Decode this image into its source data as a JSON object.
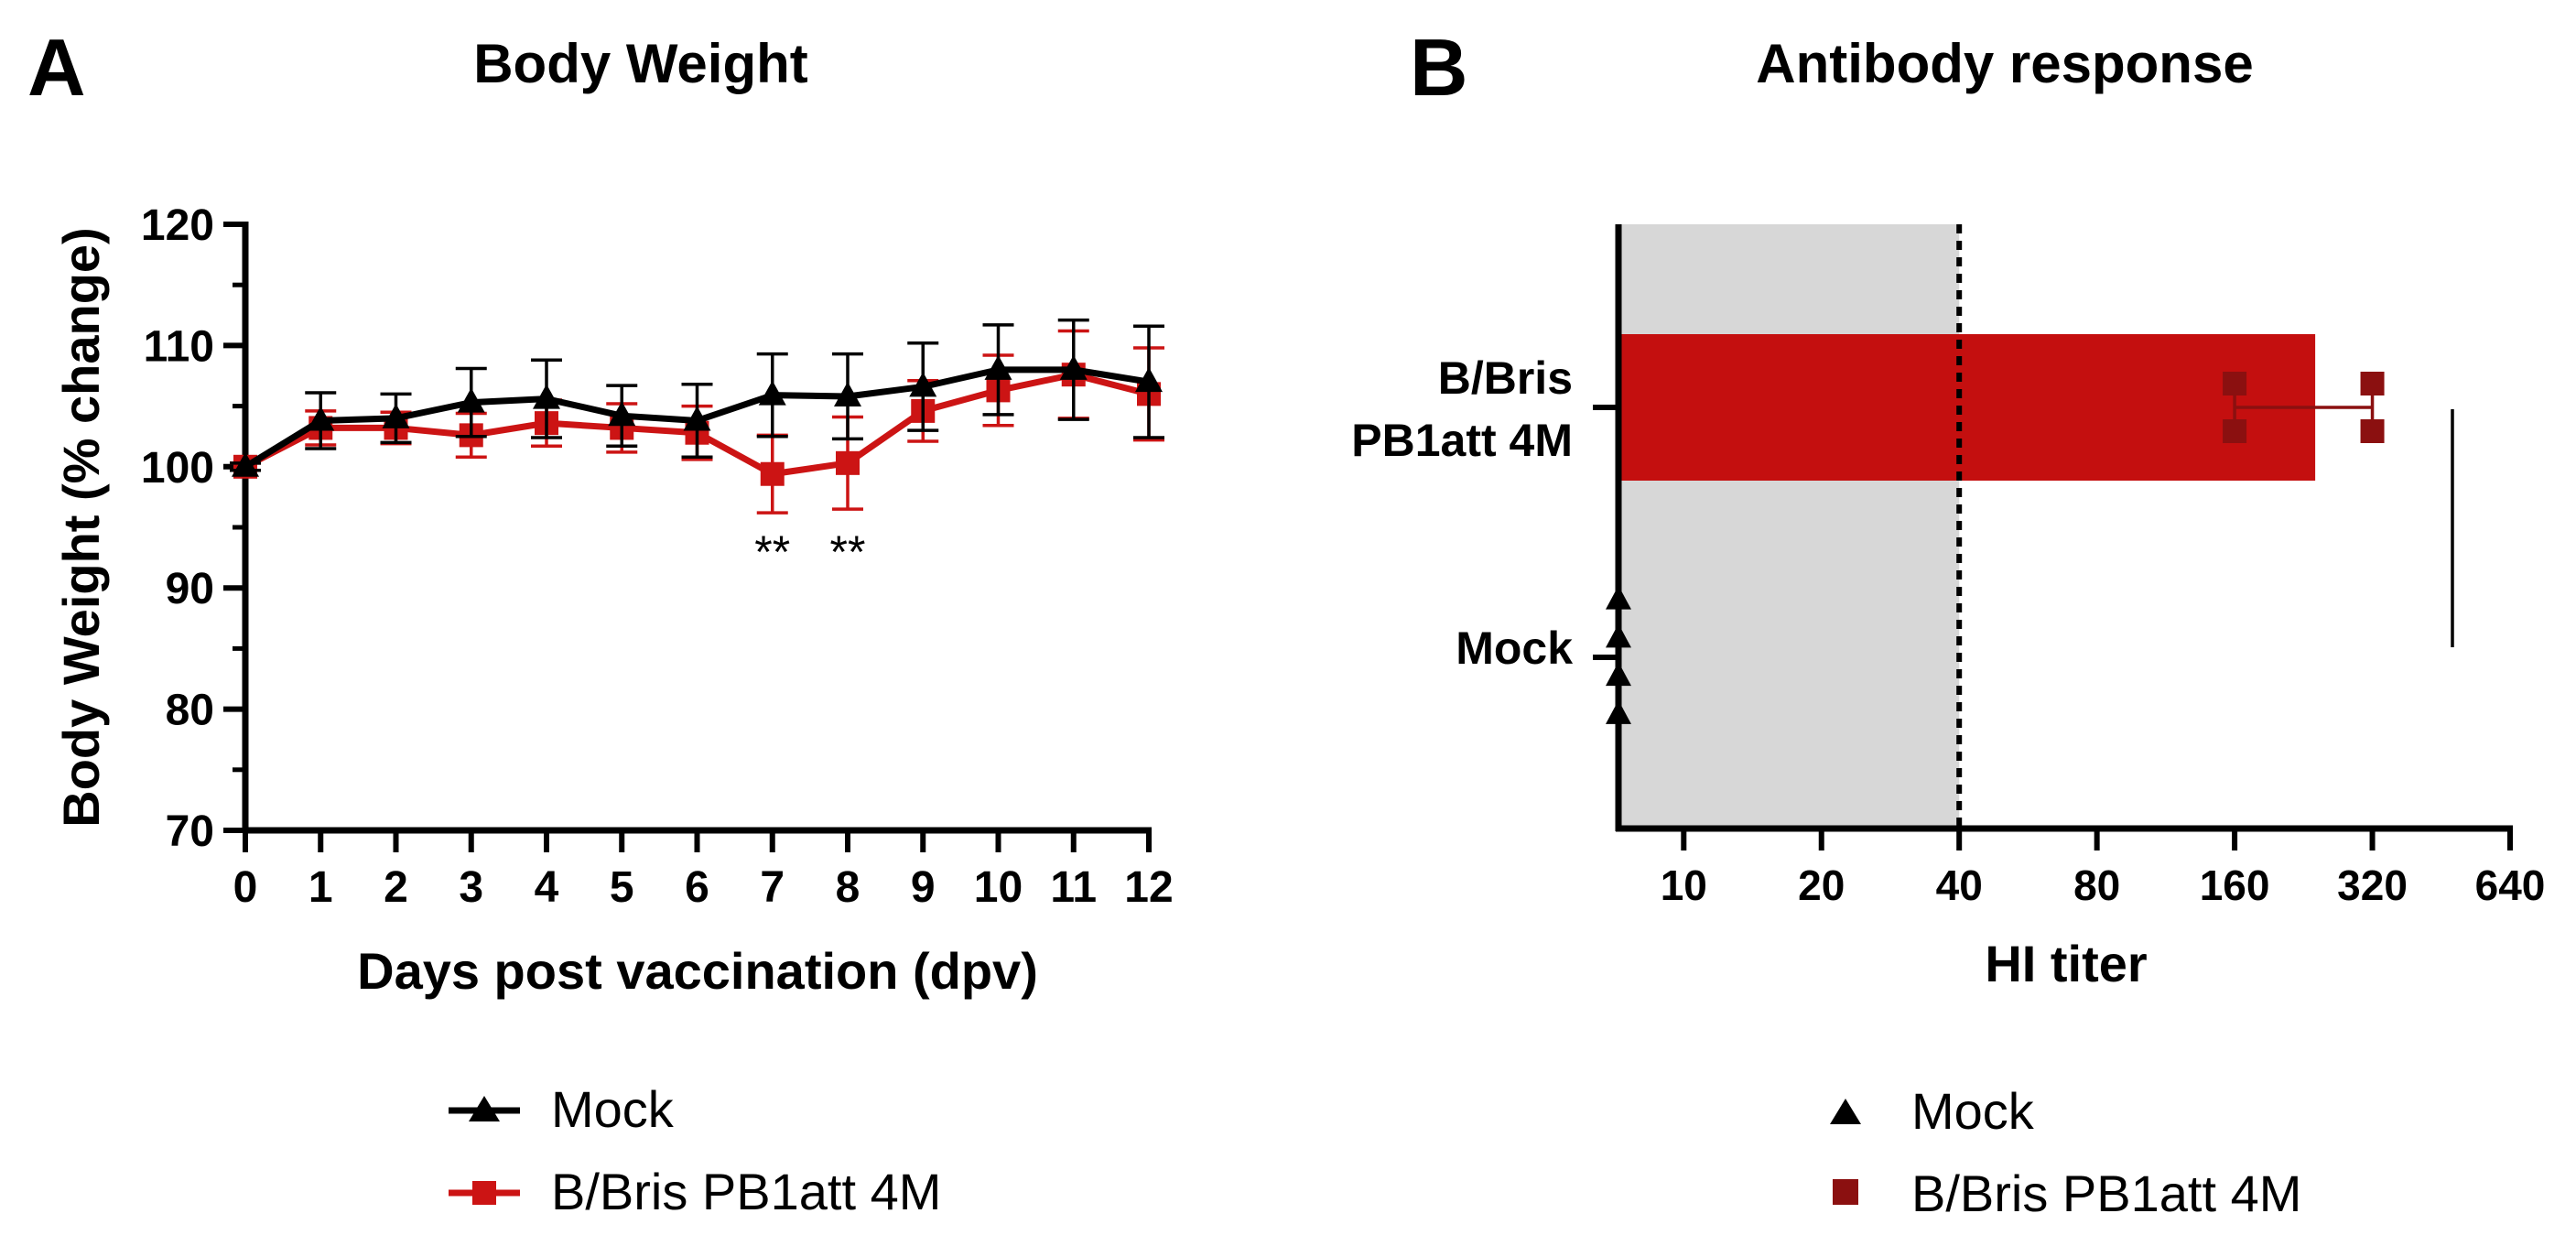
{
  "colors": {
    "mock": "#000000",
    "vaccine_line": "#cc1414",
    "vaccine_bar": "#c40f0f",
    "vaccine_points": "#8b1010",
    "shaded_region": "#d7d7d7"
  },
  "chart_data": [
    {
      "panel_letter": "A",
      "type": "line",
      "title": "Body Weight",
      "xlabel": "Days post vaccination (dpv)",
      "ylabel": "Body Weight (% change)",
      "xlim": [
        0,
        12
      ],
      "ylim": [
        70,
        120
      ],
      "x_ticks": [
        0,
        1,
        2,
        3,
        4,
        5,
        6,
        7,
        8,
        9,
        10,
        11,
        12
      ],
      "y_ticks": [
        70,
        80,
        90,
        100,
        110,
        120
      ],
      "grid": false,
      "legend_position": "bottom",
      "x": [
        0,
        1,
        2,
        3,
        4,
        5,
        6,
        7,
        8,
        9,
        10,
        11,
        12
      ],
      "series": [
        {
          "name": "Mock",
          "marker": "triangle",
          "values": [
            100,
            103.8,
            104.0,
            105.3,
            105.6,
            104.2,
            103.8,
            105.9,
            105.8,
            106.6,
            108.0,
            108.0,
            107.0
          ],
          "errors": [
            0.3,
            2.3,
            2.0,
            2.8,
            3.2,
            2.5,
            3.0,
            3.4,
            3.5,
            3.6,
            3.7,
            4.1,
            4.6
          ]
        },
        {
          "name": "B/Bris PB1att 4M",
          "marker": "square",
          "values": [
            100,
            103.2,
            103.2,
            102.6,
            103.6,
            103.2,
            102.8,
            99.4,
            100.3,
            104.6,
            106.3,
            107.6,
            106.0
          ],
          "errors": [
            0.3,
            1.4,
            1.3,
            1.8,
            1.9,
            2.0,
            2.2,
            3.2,
            3.8,
            2.5,
            2.9,
            3.6,
            3.8
          ]
        }
      ],
      "annotations": [
        {
          "x": 7,
          "text": "**"
        },
        {
          "x": 8,
          "text": "**"
        }
      ]
    },
    {
      "panel_letter": "B",
      "type": "bar",
      "orientation": "horizontal",
      "title": "Antibody response",
      "xlabel": "HI titer",
      "x_scale": "log2",
      "xlim": [
        7.2,
        640
      ],
      "x_ticks": [
        10,
        20,
        40,
        80,
        160,
        320,
        640
      ],
      "threshold": 40,
      "shaded_below": 40,
      "categories": [
        "B/Bris PB1att 4M",
        "Mock"
      ],
      "category_labels": [
        [
          "B/Bris",
          "PB1att 4M"
        ],
        [
          "Mock"
        ]
      ],
      "bar_values": [
        240,
        null
      ],
      "errors": [
        [
          160,
          320
        ],
        null
      ],
      "points": [
        {
          "group": "B/Bris PB1att 4M",
          "marker": "square",
          "values": [
            160,
            160,
            320,
            320
          ]
        },
        {
          "group": "Mock",
          "marker": "triangle",
          "values": [
            7.2,
            7.2,
            7.2,
            7.2
          ]
        }
      ],
      "legend": [
        "Mock",
        "B/Bris PB1att 4M"
      ],
      "legend_position": "bottom"
    }
  ]
}
